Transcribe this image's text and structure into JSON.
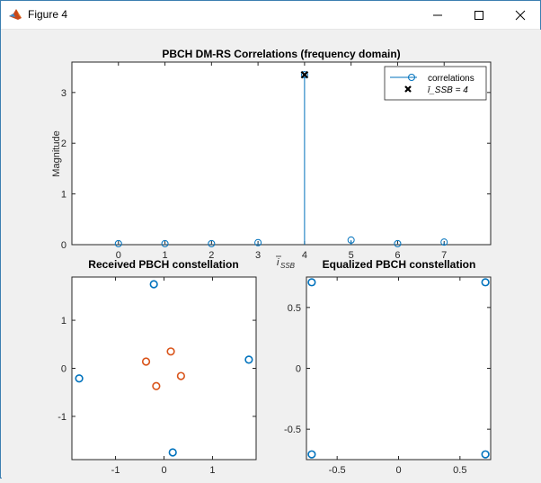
{
  "window": {
    "title": "Figure 4",
    "controls": {
      "minimize": "minimize-icon",
      "maximize": "maximize-icon",
      "close": "close-icon"
    }
  },
  "colors": {
    "series_blue": "#0072bd",
    "series_orange": "#d95319",
    "marker_black": "#000000",
    "axes_bg": "#ffffff",
    "figure_bg": "#f0f0f0"
  },
  "chart_data": [
    {
      "type": "stem",
      "title": "PBCH DM-RS Correlations (frequency domain)",
      "xlabel": "ī_SSB",
      "ylabel": "Magnitude",
      "xlim": [
        -1,
        8
      ],
      "ylim": [
        0,
        3.6
      ],
      "xticks": [
        0,
        1,
        2,
        3,
        4,
        5,
        6,
        7
      ],
      "yticks": [
        0,
        1,
        2,
        3
      ],
      "grid": false,
      "series": [
        {
          "name": "correlations",
          "x": [
            0,
            1,
            2,
            3,
            4,
            5,
            6,
            7
          ],
          "values": [
            0.02,
            0.02,
            0.02,
            0.04,
            3.35,
            0.09,
            0.02,
            0.05
          ]
        },
        {
          "name": "ī_SSB = 4",
          "x": [
            4
          ],
          "values": [
            3.35
          ]
        }
      ],
      "legend": {
        "placement": "top-right",
        "entries": [
          "correlations",
          "ī_SSB = 4"
        ]
      }
    },
    {
      "type": "scatter",
      "title": "Received PBCH constellation",
      "xlim": [
        -1.9,
        1.9
      ],
      "ylim": [
        -1.9,
        1.9
      ],
      "xticks": [
        -1,
        0,
        1
      ],
      "yticks": [
        -1,
        0,
        1
      ],
      "grid": false,
      "series": [
        {
          "x": [
            -0.21,
            1.75,
            -1.75,
            0.18
          ],
          "y": [
            1.75,
            0.18,
            -0.21,
            -1.75
          ]
        },
        {
          "x": [
            -0.37,
            0.14,
            -0.16,
            0.35
          ],
          "y": [
            0.14,
            0.35,
            -0.37,
            -0.16
          ]
        }
      ]
    },
    {
      "type": "scatter",
      "title": "Equalized PBCH constellation",
      "xlim": [
        -0.75,
        0.75
      ],
      "ylim": [
        -0.75,
        0.75
      ],
      "xticks": [
        -0.5,
        0,
        0.5
      ],
      "yticks": [
        -0.5,
        0,
        0.5
      ],
      "tick_labels": {
        "x": [
          "-0.5",
          "0",
          "0.5"
        ],
        "y": [
          "-0.5",
          "0",
          "0.5"
        ]
      },
      "grid": false,
      "series": [
        {
          "x": [
            -0.707,
            0.707,
            -0.707,
            0.707
          ],
          "y": [
            0.707,
            0.707,
            -0.707,
            -0.707
          ]
        }
      ]
    }
  ]
}
